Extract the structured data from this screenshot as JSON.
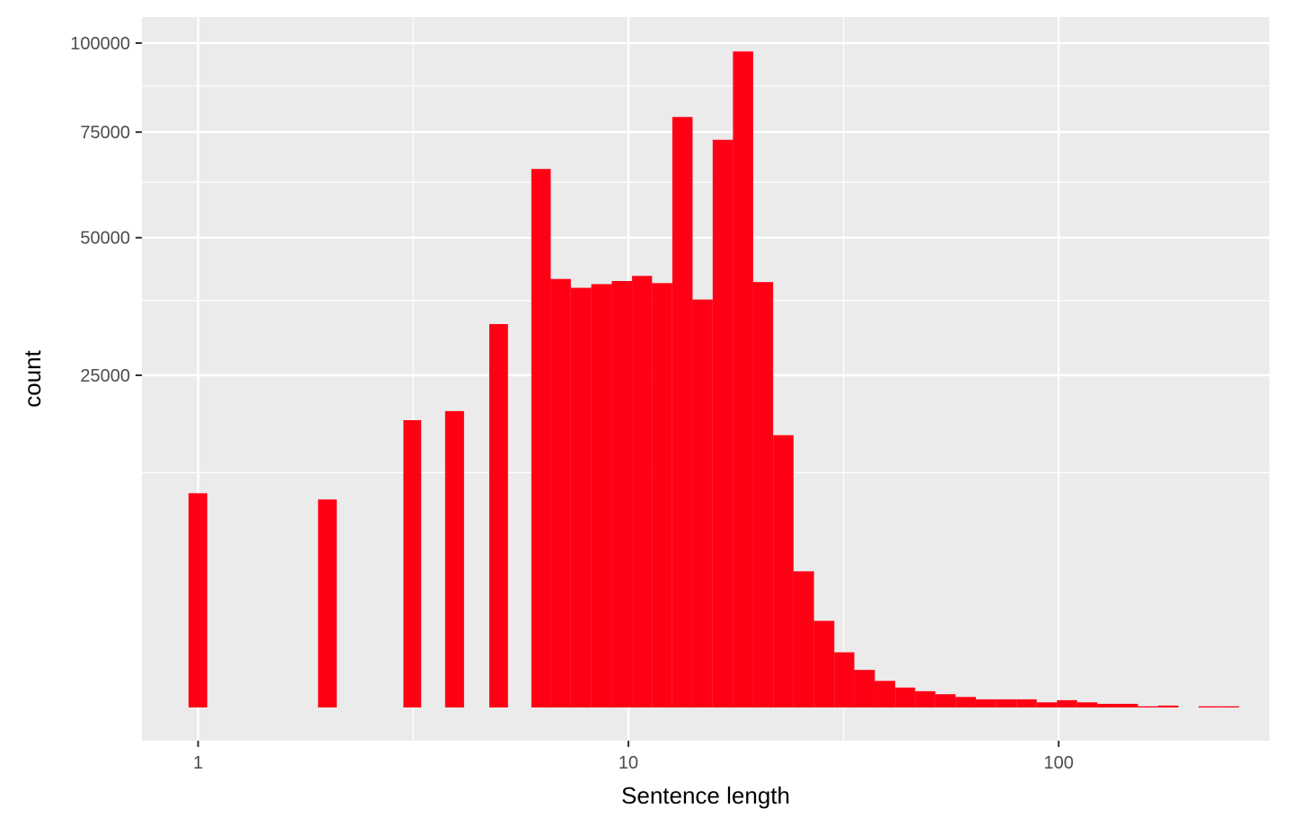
{
  "chart_data": {
    "type": "bar",
    "title": "",
    "xlabel": "Sentence length",
    "ylabel": "count",
    "x_scale": "log10",
    "y_scale": "sqrt",
    "xlim": [
      0.74,
      309
    ],
    "ylim": [
      0,
      108000
    ],
    "grid": true,
    "legend": "none",
    "x_ticks": [
      {
        "value": 1,
        "label": "1"
      },
      {
        "value": 10,
        "label": "10"
      },
      {
        "value": 100,
        "label": "100"
      }
    ],
    "y_ticks": [
      {
        "value": 25000,
        "label": "25000"
      },
      {
        "value": 50000,
        "label": "50000"
      },
      {
        "value": 75000,
        "label": "75000"
      },
      {
        "value": 100000,
        "label": "100000"
      }
    ],
    "bar_color": "#ff0015",
    "panel_color": "#ebebeb",
    "grid_color": "#ffffff",
    "bins": [
      {
        "from": 0.95,
        "to": 1.05,
        "count": 10400
      },
      {
        "from": 1.9,
        "to": 2.1,
        "count": 9800
      },
      {
        "from": 3.0,
        "to": 3.3,
        "count": 18700
      },
      {
        "from": 3.75,
        "to": 4.15,
        "count": 19900
      },
      {
        "from": 4.75,
        "to": 5.25,
        "count": 33300
      },
      {
        "from": 5.95,
        "to": 6.6,
        "count": 65700
      },
      {
        "from": 6.6,
        "to": 7.35,
        "count": 41600
      },
      {
        "from": 7.35,
        "to": 8.2,
        "count": 39900
      },
      {
        "from": 8.2,
        "to": 9.15,
        "count": 40600
      },
      {
        "from": 9.15,
        "to": 10.2,
        "count": 41200
      },
      {
        "from": 10.2,
        "to": 11.35,
        "count": 42200
      },
      {
        "from": 11.35,
        "to": 12.65,
        "count": 40800
      },
      {
        "from": 12.65,
        "to": 14.1,
        "count": 79000
      },
      {
        "from": 14.1,
        "to": 15.7,
        "count": 37700
      },
      {
        "from": 15.7,
        "to": 17.5,
        "count": 73000
      },
      {
        "from": 17.5,
        "to": 19.5,
        "count": 97500
      },
      {
        "from": 19.5,
        "to": 21.7,
        "count": 41000
      },
      {
        "from": 21.7,
        "to": 24.2,
        "count": 16800
      },
      {
        "from": 24.2,
        "to": 27.0,
        "count": 4200
      },
      {
        "from": 27.0,
        "to": 30.1,
        "count": 1700
      },
      {
        "from": 30.1,
        "to": 33.5,
        "count": 690
      },
      {
        "from": 33.5,
        "to": 37.4,
        "count": 320
      },
      {
        "from": 37.4,
        "to": 41.7,
        "count": 160
      },
      {
        "from": 41.7,
        "to": 46.4,
        "count": 90
      },
      {
        "from": 46.4,
        "to": 51.7,
        "count": 60
      },
      {
        "from": 51.7,
        "to": 57.6,
        "count": 40
      },
      {
        "from": 57.6,
        "to": 64.2,
        "count": 25
      },
      {
        "from": 64.2,
        "to": 71.6,
        "count": 15
      },
      {
        "from": 71.6,
        "to": 79.8,
        "count": 15
      },
      {
        "from": 79.8,
        "to": 88.9,
        "count": 15
      },
      {
        "from": 88.9,
        "to": 99.1,
        "count": 6
      },
      {
        "from": 99.1,
        "to": 110.4,
        "count": 12
      },
      {
        "from": 110.4,
        "to": 123.0,
        "count": 6
      },
      {
        "from": 123.0,
        "to": 137.1,
        "count": 3
      },
      {
        "from": 137.1,
        "to": 152.8,
        "count": 3
      },
      {
        "from": 152.8,
        "to": 170.3,
        "count": 0.3
      },
      {
        "from": 170.3,
        "to": 189.8,
        "count": 0.8
      },
      {
        "from": 211.5,
        "to": 235.7,
        "count": 0.3
      },
      {
        "from": 235.7,
        "to": 262.7,
        "count": 0.3
      }
    ]
  }
}
